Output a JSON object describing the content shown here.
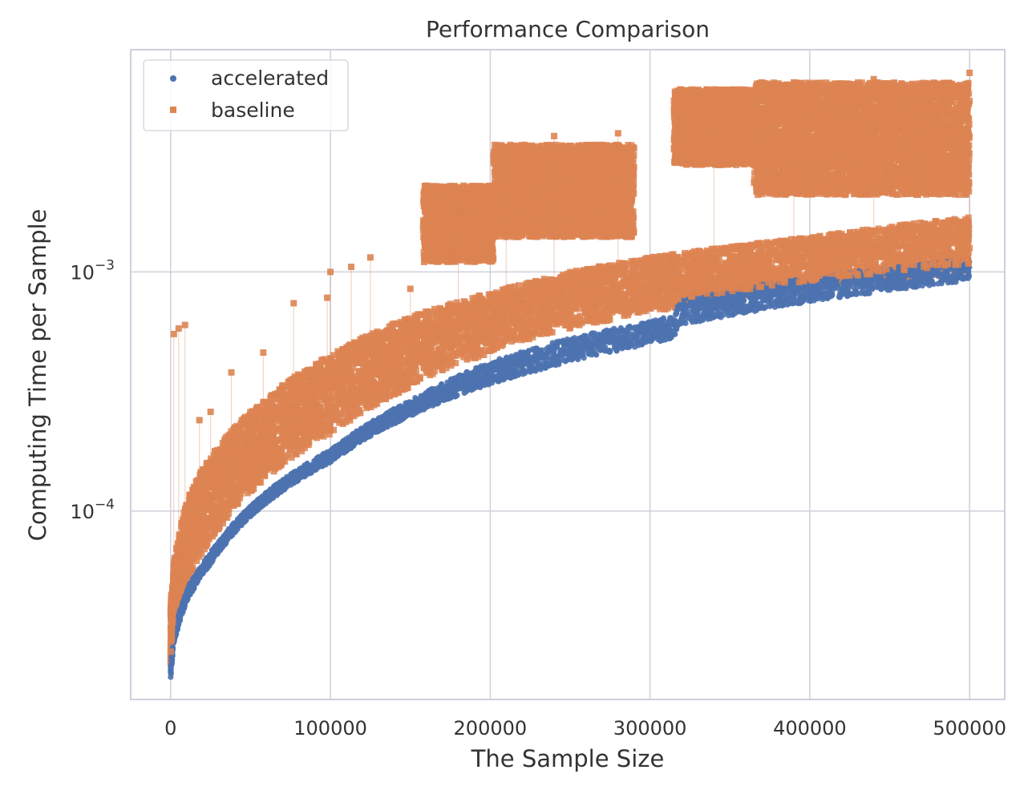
{
  "chart_data": {
    "type": "scatter",
    "title": "Performance Comparison",
    "xlabel": "The Sample Size",
    "ylabel": "Computing Time per Sample",
    "xscale": "linear",
    "yscale": "log",
    "xlim": [
      -25000,
      522000
    ],
    "ylim": [
      1.63e-05,
      0.0085
    ],
    "xticks": [
      0,
      100000,
      200000,
      300000,
      400000,
      500000
    ],
    "xtick_labels": [
      "0",
      "100000",
      "200000",
      "300000",
      "400000",
      "500000"
    ],
    "yticks": [
      0.0001,
      0.001
    ],
    "ytick_labels": [
      {
        "base": "10",
        "exp": "−4"
      },
      {
        "base": "10",
        "exp": "−3"
      }
    ],
    "grid": true,
    "legend": {
      "location": "top-left",
      "entries": [
        {
          "label": "accelerated",
          "color": "#4c72b0",
          "marker": "circle"
        },
        {
          "label": "baseline",
          "color": "#dd8452",
          "marker": "square"
        }
      ]
    },
    "series": [
      {
        "name": "accelerated",
        "color": "#4c72b0",
        "trend": {
          "x": [
            0,
            2000,
            10000,
            25000,
            50000,
            100000,
            150000,
            200000,
            250000,
            300000,
            315000,
            320000,
            400000,
            500000
          ],
          "low": [
            2e-05,
            2.8e-05,
            4.2e-05,
            6e-05,
            9.5e-05,
            0.00016,
            0.00025,
            0.00034,
            0.00042,
            0.0005,
            0.00053,
            0.0006,
            0.00075,
            0.00092
          ],
          "high": [
            2.2e-05,
            3.1e-05,
            4.7e-05,
            6.7e-05,
            0.000105,
            0.00018,
            0.00029,
            0.00042,
            0.00053,
            0.00062,
            0.00066,
            0.00078,
            0.00095,
            0.00115
          ]
        }
      },
      {
        "name": "baseline",
        "color": "#dd8452",
        "trend": {
          "x": [
            0,
            2000,
            10000,
            25000,
            50000,
            100000,
            150000,
            200000,
            250000,
            300000,
            400000,
            500000
          ],
          "low": [
            2.2e-05,
            3.2e-05,
            5e-05,
            7.5e-05,
            0.00012,
            0.00021,
            0.00033,
            0.00046,
            0.00058,
            0.00068,
            0.00085,
            0.001
          ],
          "high": [
            4e-05,
            6e-05,
            0.00011,
            0.00017,
            0.00026,
            0.00045,
            0.00065,
            0.00082,
            0.001,
            0.00115,
            0.0014,
            0.0017
          ]
        },
        "elevated_clusters": [
          {
            "x_range": [
              158000,
              202000
            ],
            "y_range": [
              0.0011,
              0.0023
            ]
          },
          {
            "x_range": [
              202000,
              290000
            ],
            "y_range": [
              0.0014,
              0.0034
            ]
          },
          {
            "x_range": [
              315000,
              365000
            ],
            "y_range": [
              0.0028,
              0.0058
            ]
          },
          {
            "x_range": [
              365000,
              500000
            ],
            "y_range": [
              0.0021,
              0.0062
            ]
          }
        ],
        "outliers": [
          {
            "x": 2000,
            "y": 0.00055
          },
          {
            "x": 5000,
            "y": 0.00058
          },
          {
            "x": 9000,
            "y": 0.0006
          },
          {
            "x": 18000,
            "y": 0.00024
          },
          {
            "x": 25000,
            "y": 0.00026
          },
          {
            "x": 38000,
            "y": 0.00038
          },
          {
            "x": 58000,
            "y": 0.00046
          },
          {
            "x": 77000,
            "y": 0.00074
          },
          {
            "x": 98000,
            "y": 0.00078
          },
          {
            "x": 100000,
            "y": 0.001
          },
          {
            "x": 113000,
            "y": 0.00105
          },
          {
            "x": 125000,
            "y": 0.00115
          },
          {
            "x": 150000,
            "y": 0.00085
          },
          {
            "x": 180000,
            "y": 0.0021
          },
          {
            "x": 210000,
            "y": 0.0033
          },
          {
            "x": 240000,
            "y": 0.0037
          },
          {
            "x": 280000,
            "y": 0.0038
          },
          {
            "x": 340000,
            "y": 0.0058
          },
          {
            "x": 390000,
            "y": 0.0062
          },
          {
            "x": 440000,
            "y": 0.0064
          },
          {
            "x": 500000,
            "y": 0.0068
          }
        ]
      }
    ]
  }
}
